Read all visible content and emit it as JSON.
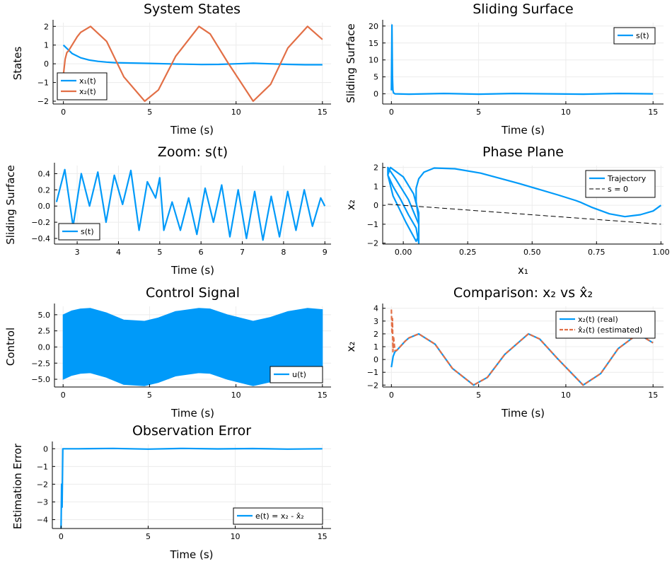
{
  "colors": {
    "blue": "#009af9",
    "orange": "#e26f46",
    "black": "#000000",
    "grid": "#ececec"
  },
  "chart_data": [
    {
      "type": "line",
      "title": "System States",
      "xlabel": "Time (s)",
      "ylabel": "States",
      "xlim": [
        -0.6,
        15.5
      ],
      "ylim": [
        -2.15,
        2.2
      ],
      "xticks": [
        0,
        5,
        10,
        15
      ],
      "xtick_labels": [
        "0",
        "5",
        "10",
        "15"
      ],
      "yticks": [
        -2,
        -1,
        0,
        1,
        2
      ],
      "ytick_labels": [
        "−2",
        "−1",
        "0",
        "1",
        "2"
      ],
      "grid": true,
      "legend": "bottom-left",
      "series": [
        {
          "name": "x₁(t)",
          "color": "#009af9",
          "x": [
            0,
            0.5,
            1,
            1.5,
            2,
            2.5,
            3,
            4,
            5,
            6,
            7,
            8,
            9,
            10,
            11,
            12,
            13,
            14,
            15
          ],
          "y": [
            1.0,
            0.55,
            0.32,
            0.2,
            0.13,
            0.09,
            0.06,
            0.04,
            0.02,
            0.0,
            -0.02,
            -0.04,
            -0.03,
            0.0,
            0.03,
            0.0,
            -0.03,
            -0.05,
            -0.05
          ]
        },
        {
          "name": "x₂(t)",
          "color": "#e26f46",
          "x": [
            0,
            0.1,
            0.2,
            0.3,
            0.5,
            0.8,
            1.0,
            1.57,
            2.5,
            3.5,
            4.71,
            5.5,
            6.5,
            7.85,
            8.5,
            9.5,
            10.99,
            12,
            13,
            14.14,
            15
          ],
          "y": [
            -0.6,
            0.25,
            0.6,
            0.7,
            1.0,
            1.45,
            1.68,
            2.0,
            1.2,
            -0.7,
            -2.0,
            -1.4,
            0.4,
            2.0,
            1.6,
            0.1,
            -2.0,
            -1.1,
            0.85,
            2.0,
            1.3
          ]
        }
      ]
    },
    {
      "type": "line",
      "title": "Sliding Surface",
      "xlabel": "Time (s)",
      "ylabel": "Sliding Surface",
      "xlim": [
        -0.5,
        15.6
      ],
      "ylim": [
        -3,
        21
      ],
      "xticks": [
        0,
        5,
        10,
        15
      ],
      "xtick_labels": [
        "0",
        "5",
        "10",
        "15"
      ],
      "yticks": [
        0,
        5,
        10,
        15,
        20
      ],
      "ytick_labels": [
        "0",
        "5",
        "10",
        "15",
        "20"
      ],
      "grid": true,
      "legend": "top-right",
      "series": [
        {
          "name": "s(t)",
          "color": "#009af9",
          "x": [
            0,
            0.03,
            0.06,
            0.09,
            0.12,
            0.2,
            1,
            3,
            5,
            7,
            9,
            11,
            13,
            15
          ],
          "y": [
            1.0,
            20.3,
            5.0,
            1.0,
            0.3,
            0.0,
            -0.1,
            0.1,
            -0.1,
            0.1,
            0.0,
            -0.1,
            0.1,
            0.0
          ]
        }
      ]
    },
    {
      "type": "line",
      "title": "Zoom: s(t)",
      "xlabel": "Time (s)",
      "ylabel": "Sliding Surface",
      "xlim": [
        2.45,
        9.15
      ],
      "ylim": [
        -0.47,
        0.5
      ],
      "xticks": [
        3,
        4,
        5,
        6,
        7,
        8,
        9
      ],
      "xtick_labels": [
        "3",
        "4",
        "5",
        "6",
        "7",
        "8",
        "9"
      ],
      "yticks": [
        -0.4,
        -0.2,
        0.0,
        0.2,
        0.4
      ],
      "ytick_labels": [
        "−0.4",
        "−0.2",
        "0.0",
        "0.2",
        "0.4"
      ],
      "grid": true,
      "legend": "bottom-left",
      "series": [
        {
          "name": "s(t)",
          "color": "#009af9",
          "x": [
            2.5,
            2.7,
            2.9,
            3.1,
            3.3,
            3.5,
            3.7,
            3.9,
            4.1,
            4.3,
            4.5,
            4.7,
            4.9,
            5.0,
            5.1,
            5.3,
            5.5,
            5.7,
            5.9,
            6.1,
            6.3,
            6.5,
            6.7,
            6.9,
            7.1,
            7.3,
            7.5,
            7.7,
            7.9,
            8.1,
            8.3,
            8.5,
            8.7,
            8.9,
            9.0
          ],
          "y": [
            0.05,
            0.45,
            -0.25,
            0.4,
            0.0,
            0.42,
            -0.2,
            0.38,
            0.02,
            0.44,
            -0.3,
            0.3,
            0.1,
            0.35,
            -0.3,
            0.05,
            -0.3,
            0.1,
            -0.35,
            0.22,
            -0.2,
            0.26,
            -0.38,
            0.2,
            -0.4,
            0.18,
            -0.42,
            0.12,
            -0.38,
            0.18,
            -0.3,
            0.2,
            -0.25,
            0.1,
            0.0
          ]
        }
      ]
    },
    {
      "type": "line",
      "title": "Phase Plane",
      "xlabel": "x₁",
      "ylabel": "x₂",
      "xlim": [
        -0.08,
        1.01
      ],
      "ylim": [
        -2.05,
        2.1
      ],
      "xticks": [
        0.0,
        0.25,
        0.5,
        0.75,
        1.0
      ],
      "xtick_labels": [
        "0.00",
        "0.25",
        "0.50",
        "0.75",
        "1.00"
      ],
      "yticks": [
        -2,
        -1,
        0,
        1,
        2
      ],
      "ytick_labels": [
        "−2",
        "−1",
        "0",
        "1",
        "2"
      ],
      "grid": true,
      "legend": "top-right",
      "series": [
        {
          "name": "Trajectory",
          "color": "#009af9",
          "dash": "solid",
          "x": [
            1.0,
            0.97,
            0.92,
            0.86,
            0.8,
            0.73,
            0.69,
            0.67,
            0.6,
            0.45,
            0.3,
            0.2,
            0.12,
            0.08,
            0.06,
            0.05,
            0.05,
            0.06,
            0.06,
            0.05,
            0.02,
            -0.01,
            -0.04,
            -0.06,
            -0.05,
            0.0,
            0.04,
            0.06,
            0.06,
            0.05,
            0.01,
            -0.04,
            -0.06,
            -0.06,
            -0.03,
            0.02,
            0.06,
            0.06
          ],
          "y": [
            0.0,
            -0.3,
            -0.5,
            -0.6,
            -0.45,
            -0.1,
            0.15,
            0.25,
            0.55,
            1.15,
            1.7,
            1.93,
            1.97,
            1.75,
            1.4,
            0.9,
            0.2,
            -0.8,
            -2.0,
            -1.2,
            -0.5,
            0.3,
            1.0,
            1.6,
            2.0,
            1.5,
            0.6,
            -0.4,
            -1.6,
            -1.9,
            -0.9,
            0.5,
            1.6,
            2.0,
            1.4,
            0.3,
            -1.0,
            -2.0
          ]
        },
        {
          "name": "s = 0",
          "color": "#000000",
          "dash": "dashed",
          "x": [
            -0.06,
            1.0
          ],
          "y": [
            0.06,
            -1.0
          ]
        }
      ]
    },
    {
      "type": "area",
      "title": "Control Signal",
      "xlabel": "Time (s)",
      "ylabel": "Control",
      "xlim": [
        -0.5,
        15.5
      ],
      "ylim": [
        -6.2,
        6.3
      ],
      "xticks": [
        0,
        5,
        10,
        15
      ],
      "xtick_labels": [
        "0",
        "5",
        "10",
        "15"
      ],
      "yticks": [
        -5.0,
        -2.5,
        0.0,
        2.5,
        5.0
      ],
      "ytick_labels": [
        "−5.0",
        "−2.5",
        "0.0",
        "2.5",
        "5.0"
      ],
      "grid": true,
      "legend": "bottom-right",
      "series": [
        {
          "name": "u(t)",
          "color": "#009af9",
          "x": [
            0,
            0.5,
            1.0,
            1.57,
            2.5,
            3.5,
            4.71,
            5.5,
            6.5,
            7.85,
            8.5,
            9.5,
            10.99,
            12,
            13,
            14.14,
            15
          ],
          "upper": [
            5.0,
            5.6,
            5.9,
            6.0,
            5.3,
            4.2,
            4.0,
            4.5,
            5.5,
            6.0,
            5.9,
            5.0,
            4.0,
            4.6,
            5.5,
            6.0,
            5.8
          ],
          "lower": [
            -5.0,
            -4.4,
            -4.1,
            -4.0,
            -4.7,
            -5.8,
            -6.0,
            -5.5,
            -4.5,
            -4.0,
            -4.1,
            -5.0,
            -6.0,
            -5.4,
            -4.5,
            -4.0,
            -4.2
          ]
        }
      ]
    },
    {
      "type": "line",
      "title": "Comparison: x₂ vs x̂₂",
      "xlabel": "Time (s)",
      "ylabel": "x₂",
      "xlim": [
        -0.5,
        15.6
      ],
      "ylim": [
        -2.15,
        4.15
      ],
      "xticks": [
        0,
        5,
        10,
        15
      ],
      "xtick_labels": [
        "0",
        "5",
        "10",
        "15"
      ],
      "yticks": [
        -2,
        -1,
        0,
        1,
        2,
        3,
        4
      ],
      "ytick_labels": [
        "−2",
        "−1",
        "0",
        "1",
        "2",
        "3",
        "4"
      ],
      "grid": true,
      "legend": "top-right",
      "series": [
        {
          "name": "x₂(t) (real)",
          "color": "#009af9",
          "dash": "solid",
          "x": [
            0,
            0.1,
            0.2,
            0.3,
            0.5,
            0.8,
            1.0,
            1.57,
            2.5,
            3.5,
            4.71,
            5.5,
            6.5,
            7.85,
            8.5,
            9.5,
            10.99,
            12,
            13,
            14.14,
            15
          ],
          "y": [
            -0.6,
            0.25,
            0.6,
            0.7,
            1.0,
            1.45,
            1.68,
            2.0,
            1.2,
            -0.7,
            -2.0,
            -1.4,
            0.4,
            2.0,
            1.6,
            0.1,
            -2.0,
            -1.1,
            0.85,
            2.0,
            1.3
          ]
        },
        {
          "name": "x̂₂(t) (estimated)",
          "color": "#e26f46",
          "dash": "dashed",
          "x": [
            0,
            0.03,
            0.06,
            0.09,
            0.12,
            0.2,
            0.3,
            0.5,
            0.8,
            1.0,
            1.57,
            2.5,
            3.5,
            4.71,
            5.5,
            6.5,
            7.85,
            8.5,
            9.5,
            10.99,
            12,
            13,
            14.14,
            15
          ],
          "y": [
            3.9,
            2.0,
            3.2,
            0.6,
            1.8,
            0.7,
            0.7,
            1.0,
            1.45,
            1.68,
            2.0,
            1.2,
            -0.7,
            -2.0,
            -1.4,
            0.4,
            2.0,
            1.6,
            0.1,
            -2.0,
            -1.1,
            0.85,
            2.0,
            1.3
          ]
        }
      ]
    },
    {
      "type": "line",
      "title": "Observation Error",
      "xlabel": "Time (s)",
      "ylabel": "Estimation Error",
      "xlim": [
        -0.5,
        15.5
      ],
      "ylim": [
        -4.5,
        0.25
      ],
      "xticks": [
        0,
        5,
        10,
        15
      ],
      "xtick_labels": [
        "0",
        "5",
        "10",
        "15"
      ],
      "yticks": [
        -4,
        -3,
        -2,
        -1,
        0
      ],
      "ytick_labels": [
        "−4",
        "−3",
        "−2",
        "−1",
        "0"
      ],
      "grid": true,
      "legend": "bottom-right",
      "series": [
        {
          "name": "e(t) = x₂ - x̂₂",
          "color": "#009af9",
          "x": [
            0,
            0.03,
            0.06,
            0.1,
            0.2,
            1,
            3,
            5,
            7,
            9,
            11,
            13,
            15
          ],
          "y": [
            -4.5,
            -2.0,
            -3.3,
            0.0,
            0.0,
            0.0,
            0.02,
            -0.02,
            0.02,
            -0.01,
            0.01,
            -0.02,
            0.0
          ]
        }
      ]
    }
  ]
}
